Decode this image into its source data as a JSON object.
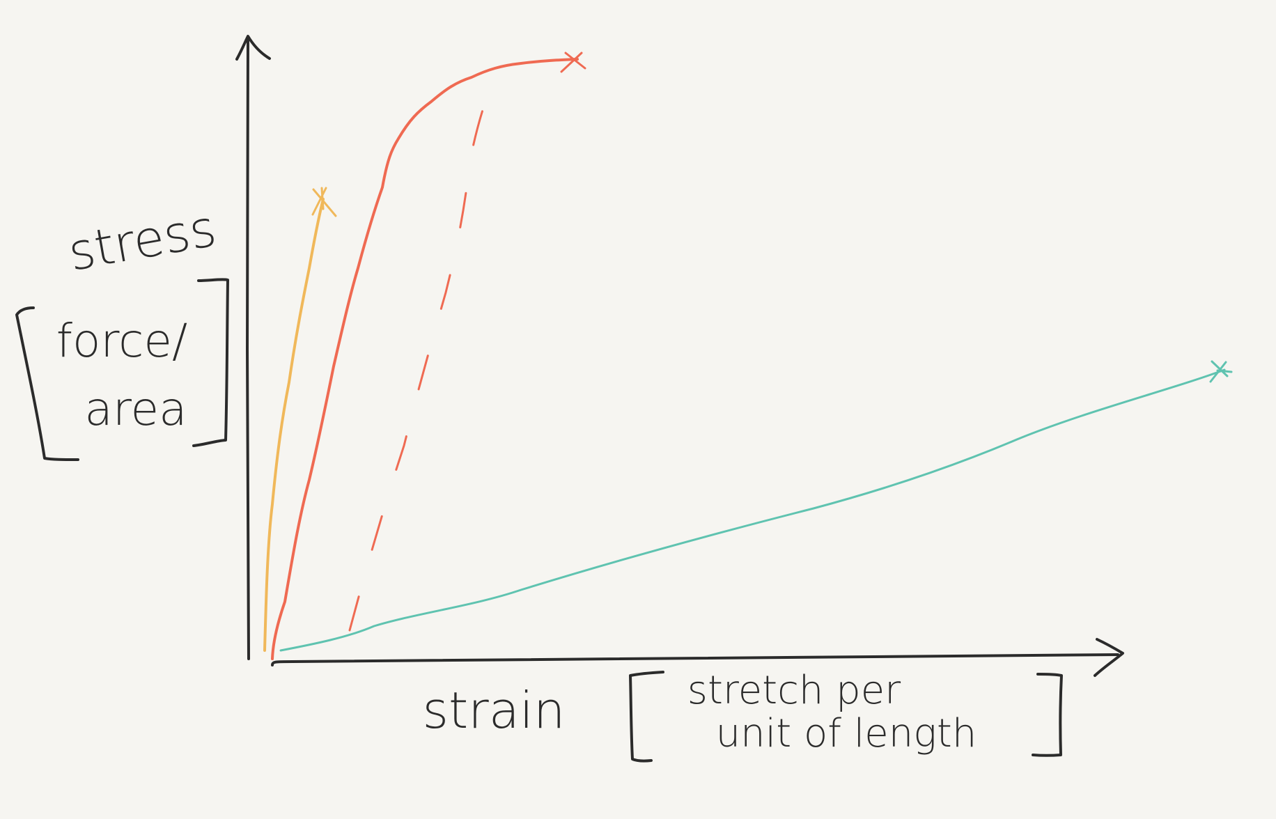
{
  "axes": {
    "y_label": "stress",
    "y_unit_lines": [
      "force/",
      "area"
    ],
    "x_label": "strain",
    "x_unit_lines": [
      "stretch per",
      "unit of length"
    ]
  }
}
